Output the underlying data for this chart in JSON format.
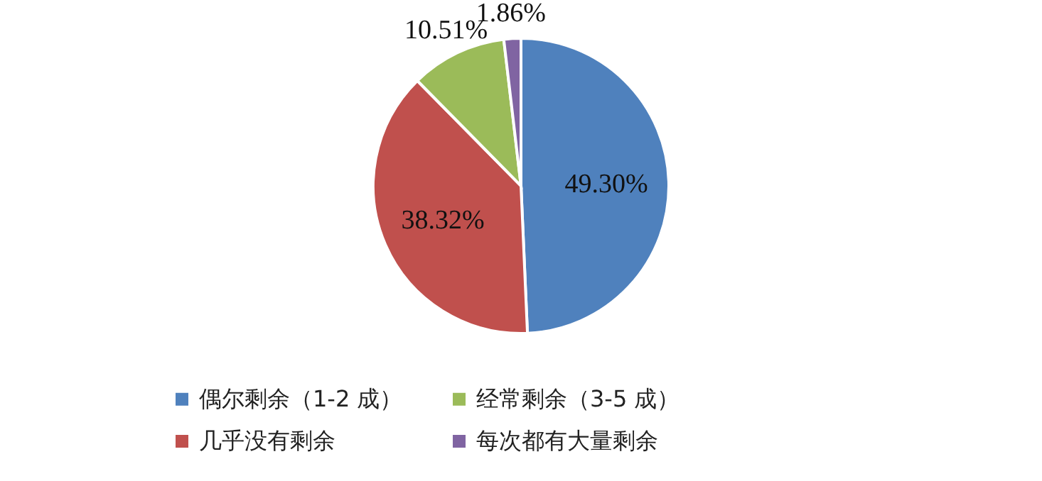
{
  "chart_data": {
    "type": "pie",
    "categories": [
      "偶尔剩余（1-2 成）",
      "几乎没有剩余",
      "经常剩余（3-5 成）",
      "每次都有大量剩余"
    ],
    "values": [
      49.3,
      38.32,
      10.51,
      1.86
    ],
    "value_labels": [
      "49.30%",
      "38.32%",
      "10.51%",
      "1.86%"
    ],
    "colors": [
      "#4f81bd",
      "#c0504d",
      "#9bbb59",
      "#8064a2"
    ],
    "legend": "bottom"
  }
}
